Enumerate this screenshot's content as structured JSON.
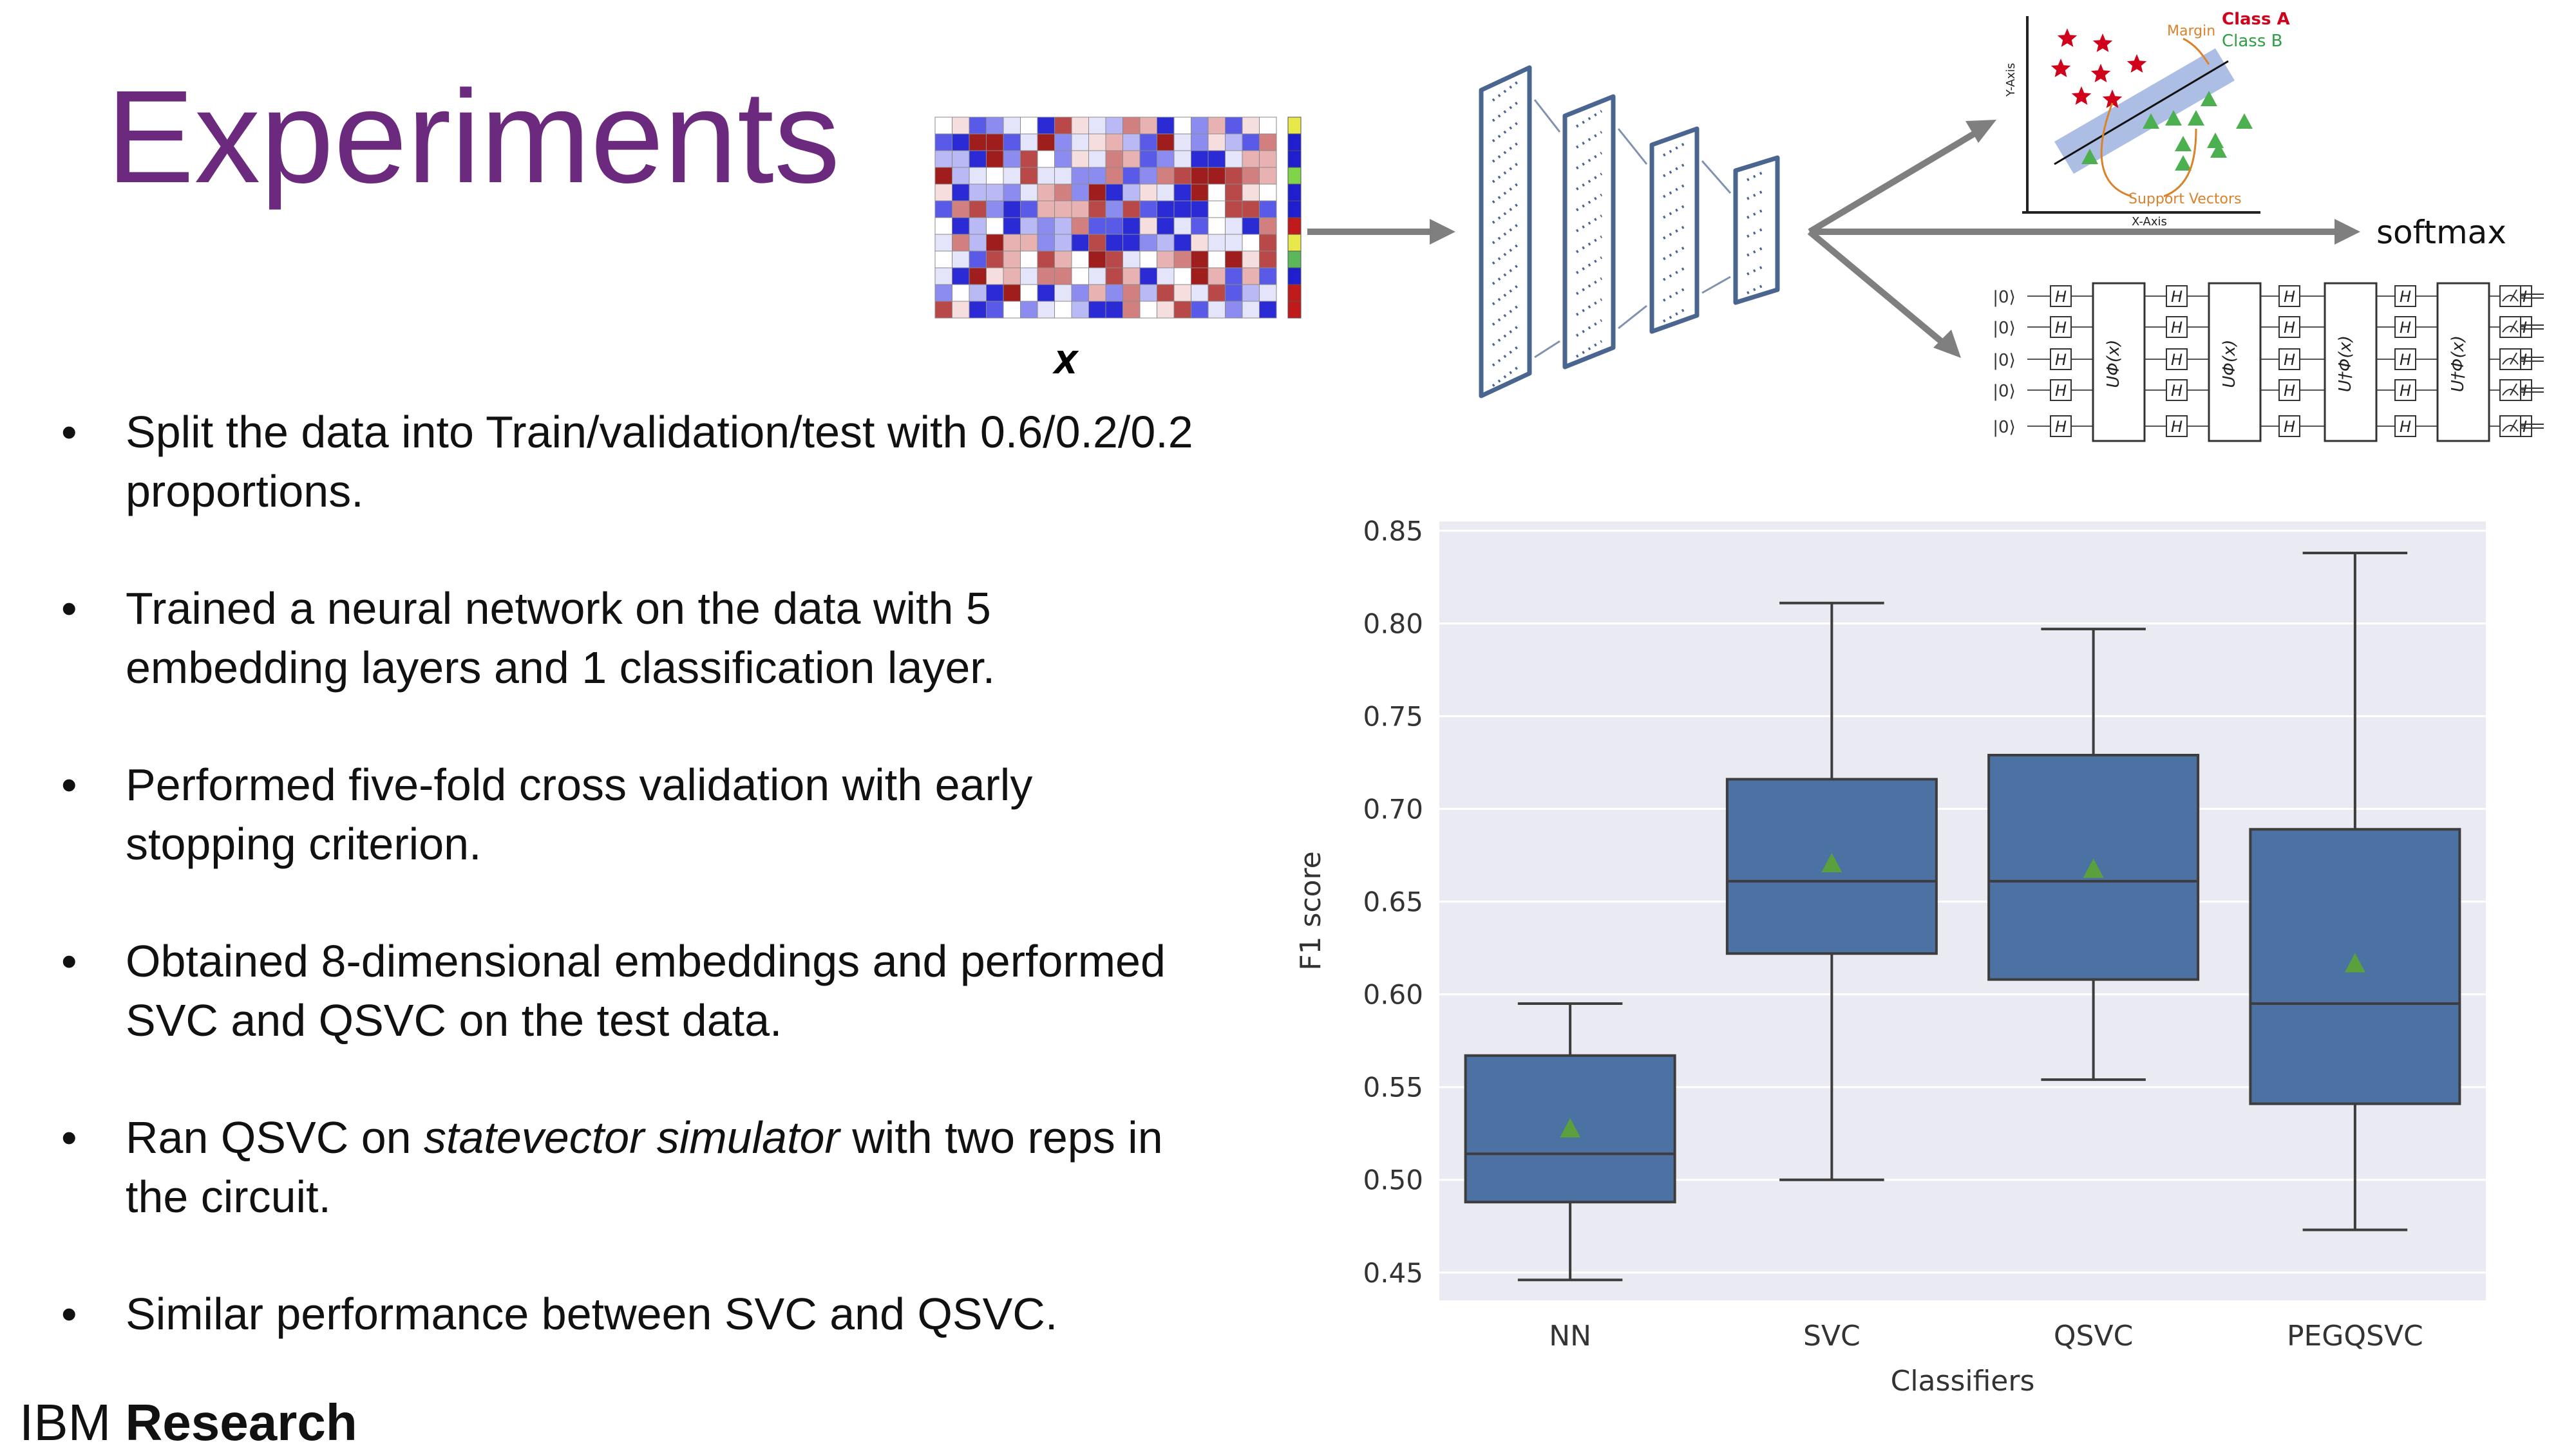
{
  "slide": {
    "title": "Experiments",
    "bullets": [
      {
        "text": "Split the data into Train/validation/test with 0.6/0.2/0.2 proportions."
      },
      {
        "text": "Trained a neural network on the data with 5 embedding layers and 1 classification layer."
      },
      {
        "text": "Performed five-fold cross validation with early stopping criterion."
      },
      {
        "text": "Obtained 8-dimensional embeddings and performed SVC and QSVC on the test data."
      },
      {
        "pre": "Ran QSVC on ",
        "em": "statevector simulator",
        "post": " with two reps in the circuit."
      },
      {
        "text": "Similar performance between SVC and QSVC."
      }
    ],
    "footer": {
      "light": "IBM ",
      "bold": "Research"
    },
    "bullet_char": "•"
  },
  "diagram": {
    "input_label": "X",
    "svm_inset": {
      "class_a": "Class A",
      "class_b": "Class B",
      "margin": "Margin",
      "support_vectors": "Support Vectors",
      "x_axis": "X-Axis",
      "y_axis": "Y-Axis"
    },
    "softmax_label": "softmax",
    "circuit": {
      "ket_label": "|0⟩",
      "h_label": "H",
      "u_label": "UΦ(x)",
      "udag_label": "U†Φ(x)"
    },
    "colors": {
      "red": "#c0392b",
      "blue": "#3b3fd8",
      "arrow": "#7f7f7f",
      "nn": "#4a6590"
    }
  },
  "chart_data": {
    "type": "box",
    "xlabel": "Classifiers",
    "ylabel": "F1 score",
    "ylim": [
      0.435,
      0.855
    ],
    "yticks": [
      0.45,
      0.5,
      0.55,
      0.6,
      0.65,
      0.7,
      0.75,
      0.8,
      0.85
    ],
    "grid": true,
    "background": "#eaeaf2",
    "box_color": "#4c72a4",
    "mean_color": "#5aa03c",
    "categories": [
      "NN",
      "SVC",
      "QSVC",
      "PEGQSVC"
    ],
    "boxes": [
      {
        "min": 0.446,
        "q1": 0.488,
        "median": 0.514,
        "q3": 0.567,
        "max": 0.595,
        "mean": 0.527
      },
      {
        "min": 0.5,
        "q1": 0.622,
        "median": 0.661,
        "q3": 0.716,
        "max": 0.811,
        "mean": 0.67
      },
      {
        "min": 0.554,
        "q1": 0.608,
        "median": 0.661,
        "q3": 0.729,
        "max": 0.797,
        "mean": 0.667
      },
      {
        "min": 0.473,
        "q1": 0.541,
        "median": 0.595,
        "q3": 0.689,
        "max": 0.838,
        "mean": 0.616
      }
    ]
  }
}
